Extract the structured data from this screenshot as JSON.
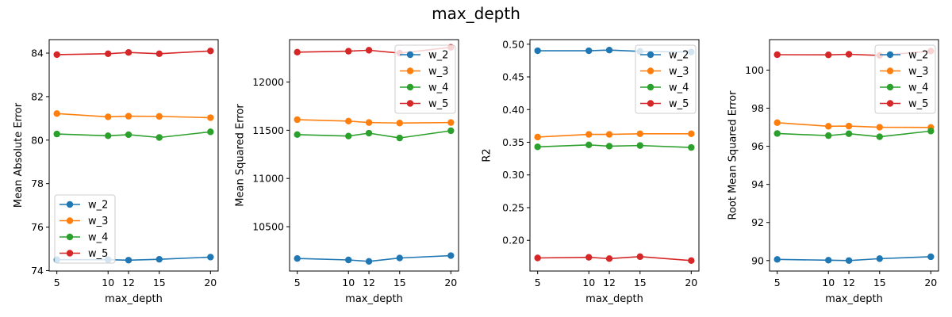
{
  "figure": {
    "suptitle": "max_depth"
  },
  "chart_data": [
    {
      "type": "line",
      "xlabel": "max_depth",
      "ylabel": "Mean Absolute Error",
      "x": [
        5,
        10,
        12,
        15,
        20
      ],
      "xticks": [
        "5",
        "10",
        "12",
        "15",
        "20"
      ],
      "xlim": [
        4.25,
        20.75
      ],
      "ylim": [
        73.98,
        84.62
      ],
      "yticks": [
        "74",
        "76",
        "78",
        "80",
        "82",
        "84"
      ],
      "ytick_values": [
        74,
        76,
        78,
        80,
        82,
        84
      ],
      "legend": "lower-left",
      "series": [
        {
          "name": "w_2",
          "color": "#1f77b4",
          "values": [
            74.5,
            74.5,
            74.48,
            74.52,
            74.62
          ]
        },
        {
          "name": "w_3",
          "color": "#ff7f0e",
          "values": [
            81.22,
            81.07,
            81.1,
            81.09,
            81.03
          ]
        },
        {
          "name": "w_4",
          "color": "#2ca02c",
          "values": [
            80.28,
            80.2,
            80.25,
            80.12,
            80.38
          ]
        },
        {
          "name": "w_5",
          "color": "#d62728",
          "values": [
            83.93,
            83.97,
            84.03,
            83.97,
            84.1
          ]
        }
      ]
    },
    {
      "type": "line",
      "xlabel": "max_depth",
      "ylabel": "Mean Squared Error",
      "x": [
        5,
        10,
        12,
        15,
        20
      ],
      "xticks": [
        "5",
        "10",
        "12",
        "15",
        "20"
      ],
      "xlim": [
        4.25,
        20.75
      ],
      "ylim": [
        10040,
        12440
      ],
      "yticks": [
        "10500",
        "11000",
        "11500",
        "12000"
      ],
      "ytick_values": [
        10500,
        11000,
        11500,
        12000
      ],
      "legend": "upper-right",
      "series": [
        {
          "name": "w_2",
          "color": "#1f77b4",
          "values": [
            10170,
            10155,
            10140,
            10175,
            10200
          ]
        },
        {
          "name": "w_3",
          "color": "#ff7f0e",
          "values": [
            11610,
            11595,
            11580,
            11575,
            11580
          ]
        },
        {
          "name": "w_4",
          "color": "#2ca02c",
          "values": [
            11455,
            11440,
            11470,
            11420,
            11495
          ]
        },
        {
          "name": "w_5",
          "color": "#d62728",
          "values": [
            12310,
            12320,
            12330,
            12300,
            12360
          ]
        }
      ]
    },
    {
      "type": "line",
      "xlabel": "max_depth",
      "ylabel": "R2",
      "x": [
        5,
        10,
        12,
        15,
        20
      ],
      "xticks": [
        "5",
        "10",
        "12",
        "15",
        "20"
      ],
      "xlim": [
        4.25,
        20.75
      ],
      "ylim": [
        0.153,
        0.507
      ],
      "yticks": [
        "0.20",
        "0.25",
        "0.30",
        "0.35",
        "0.40",
        "0.45",
        "0.50"
      ],
      "ytick_values": [
        0.2,
        0.25,
        0.3,
        0.35,
        0.4,
        0.45,
        0.5
      ],
      "legend": "upper-right",
      "series": [
        {
          "name": "w_2",
          "color": "#1f77b4",
          "values": [
            0.49,
            0.49,
            0.491,
            0.489,
            0.488
          ]
        },
        {
          "name": "w_3",
          "color": "#ff7f0e",
          "values": [
            0.358,
            0.362,
            0.362,
            0.363,
            0.363
          ]
        },
        {
          "name": "w_4",
          "color": "#2ca02c",
          "values": [
            0.343,
            0.346,
            0.344,
            0.345,
            0.342
          ]
        },
        {
          "name": "w_5",
          "color": "#d62728",
          "values": [
            0.173,
            0.174,
            0.172,
            0.175,
            0.169
          ]
        }
      ]
    },
    {
      "type": "line",
      "xlabel": "max_depth",
      "ylabel": "Root Mean Squared Error",
      "x": [
        5,
        10,
        12,
        15,
        20
      ],
      "xticks": [
        "5",
        "10",
        "12",
        "15",
        "20"
      ],
      "xlim": [
        4.25,
        20.75
      ],
      "ylim": [
        89.45,
        101.6
      ],
      "yticks": [
        "90",
        "92",
        "94",
        "96",
        "98",
        "100"
      ],
      "ytick_values": [
        90,
        92,
        94,
        96,
        98,
        100
      ],
      "legend": "upper-right",
      "series": [
        {
          "name": "w_2",
          "color": "#1f77b4",
          "values": [
            90.06,
            90.02,
            90.0,
            90.1,
            90.2
          ]
        },
        {
          "name": "w_3",
          "color": "#ff7f0e",
          "values": [
            97.24,
            97.05,
            97.06,
            97.0,
            96.99
          ]
        },
        {
          "name": "w_4",
          "color": "#2ca02c",
          "values": [
            96.67,
            96.56,
            96.66,
            96.5,
            96.8
          ]
        },
        {
          "name": "w_5",
          "color": "#d62728",
          "values": [
            100.81,
            100.8,
            100.83,
            100.77,
            101.0
          ]
        }
      ]
    }
  ]
}
